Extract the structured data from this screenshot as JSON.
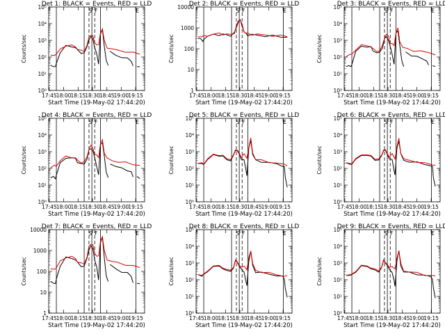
{
  "chart_data": {
    "type": "line",
    "layout": "grid 3x3",
    "common": {
      "xlabel": "Start Time (19-May-02 17:44:20)",
      "ylabel": "Counts/sec",
      "x_ticks": [
        "17:45",
        "18:00",
        "18:15",
        "18:30",
        "18:45",
        "19:00",
        "19:15"
      ],
      "x_tick_minutes": [
        0.667,
        15.667,
        30.667,
        45.667,
        60.667,
        75.667,
        90.667
      ],
      "x_range_minutes": [
        0,
        100
      ],
      "y_scale": "log",
      "colors": {
        "events": "#000000",
        "lld": "#e00000"
      },
      "solid_lines_minutes": [
        8,
        37,
        45,
        54,
        91
      ],
      "dashed_lines_minutes": [
        42,
        48
      ],
      "top_letters": [
        {
          "text": "S",
          "minute": 43.5
        },
        {
          "text": "F",
          "minute": 49.5
        },
        {
          "text": "E",
          "minute": 92.5
        }
      ]
    },
    "panels": [
      {
        "title": "Det 1: BLACK = Events, RED = LLD",
        "ylim": [
          1,
          100000
        ],
        "y_ticks": [
          "10⁰",
          "10¹",
          "10²",
          "10³",
          "10⁴",
          "10⁵"
        ],
        "y_tick_values": [
          1,
          10,
          100,
          1000,
          10000,
          100000
        ],
        "style": "A"
      },
      {
        "title": "Det 2: BLACK = Events, RED = LLD",
        "ylim": [
          1,
          10000
        ],
        "y_ticks": [
          "1",
          "10",
          "100",
          "1000",
          "10000"
        ],
        "y_tick_values": [
          1,
          10,
          100,
          1000,
          10000
        ],
        "style": "B"
      },
      {
        "title": "Det 3: BLACK = Events, RED = LLD",
        "ylim": [
          1,
          100000
        ],
        "y_ticks": [
          "10⁰",
          "10¹",
          "10²",
          "10³",
          "10⁴",
          "10⁵"
        ],
        "y_tick_values": [
          1,
          10,
          100,
          1000,
          10000,
          100000
        ],
        "style": "A"
      },
      {
        "title": "Det 4: BLACK = Events, RED = LLD",
        "ylim": [
          1,
          100000
        ],
        "y_ticks": [
          "10⁰",
          "10¹",
          "10²",
          "10³",
          "10⁴",
          "10⁵"
        ],
        "y_tick_values": [
          1,
          10,
          100,
          1000,
          10000,
          100000
        ],
        "style": "A"
      },
      {
        "title": "Det 5: BLACK = Events, RED = LLD",
        "ylim": [
          1,
          100000
        ],
        "y_ticks": [
          "10⁰",
          "10¹",
          "10²",
          "10³",
          "10⁴",
          "10⁵"
        ],
        "y_tick_values": [
          1,
          10,
          100,
          1000,
          10000,
          100000
        ],
        "style": "C"
      },
      {
        "title": "Det 6: BLACK = Events, RED = LLD",
        "ylim": [
          1,
          100000
        ],
        "y_ticks": [
          "10⁰",
          "10¹",
          "10²",
          "10³",
          "10⁴",
          "10⁵"
        ],
        "y_tick_values": [
          1,
          10,
          100,
          1000,
          10000,
          100000
        ],
        "style": "C"
      },
      {
        "title": "Det 7: BLACK = Events, RED = LLD",
        "ylim": [
          1,
          10000
        ],
        "y_ticks": [
          "1",
          "10",
          "100",
          "1000",
          "10000"
        ],
        "y_tick_values": [
          1,
          10,
          100,
          1000,
          10000
        ],
        "style": "A"
      },
      {
        "title": "Det 8: BLACK = Events, RED = LLD",
        "ylim": [
          1,
          100000
        ],
        "y_ticks": [
          "10⁰",
          "10¹",
          "10²",
          "10³",
          "10⁴",
          "10⁵"
        ],
        "y_tick_values": [
          1,
          10,
          100,
          1000,
          10000,
          100000
        ],
        "style": "C"
      },
      {
        "title": "Det 9: BLACK = Events, RED = LLD",
        "ylim": [
          1,
          100000
        ],
        "y_ticks": [
          "10⁰",
          "10¹",
          "10²",
          "10³",
          "10⁴",
          "10⁵"
        ],
        "y_tick_values": [
          1,
          10,
          100,
          1000,
          10000,
          100000
        ],
        "style": "C"
      }
    ],
    "series_shapes": {
      "A": {
        "red": [
          [
            0,
            null
          ],
          [
            2,
            120
          ],
          [
            6,
            140
          ],
          [
            8,
            140
          ],
          [
            12,
            300
          ],
          [
            18,
            500
          ],
          [
            24,
            480
          ],
          [
            28,
            420
          ],
          [
            30,
            300
          ],
          [
            34,
            230
          ],
          [
            37,
            240
          ],
          [
            40,
            500
          ],
          [
            42,
            1500
          ],
          [
            44,
            2200
          ],
          [
            46,
            1800
          ],
          [
            48,
            700
          ],
          [
            50,
            600
          ],
          [
            52,
            500
          ],
          [
            54,
            3000
          ],
          [
            56,
            5000
          ],
          [
            58,
            900
          ],
          [
            61,
            380
          ],
          [
            66,
            300
          ],
          [
            72,
            250
          ],
          [
            80,
            220
          ],
          [
            88,
            180
          ],
          [
            95,
            150
          ]
        ],
        "black": [
          [
            0,
            null
          ],
          [
            2,
            30
          ],
          [
            5,
            30
          ],
          [
            7,
            25
          ],
          [
            8,
            40
          ],
          [
            12,
            200
          ],
          [
            18,
            450
          ],
          [
            24,
            420
          ],
          [
            28,
            380
          ],
          [
            30,
            250
          ],
          [
            34,
            180
          ],
          [
            37,
            180
          ],
          [
            40,
            400
          ],
          [
            42,
            1200
          ],
          [
            44,
            1600
          ],
          [
            46,
            1200
          ],
          [
            48,
            400
          ],
          [
            50,
            150
          ],
          [
            52,
            40
          ],
          [
            54,
            2500
          ],
          [
            56,
            4000
          ],
          [
            58,
            500
          ],
          [
            60,
            60
          ],
          [
            62,
            30
          ],
          [
            63,
            null
          ],
          [
            64,
            200
          ],
          [
            70,
            130
          ],
          [
            76,
            100
          ],
          [
            82,
            80
          ],
          [
            86,
            60
          ],
          [
            88,
            30
          ],
          [
            89,
            null
          ],
          [
            92,
            30
          ],
          [
            95,
            25
          ]
        ]
      },
      "B": {
        "red": [
          [
            0,
            null
          ],
          [
            2,
            380
          ],
          [
            6,
            400
          ],
          [
            8,
            380
          ],
          [
            12,
            430
          ],
          [
            18,
            500
          ],
          [
            24,
            520
          ],
          [
            28,
            510
          ],
          [
            32,
            480
          ],
          [
            36,
            470
          ],
          [
            40,
            600
          ],
          [
            42,
            1200
          ],
          [
            44,
            2200
          ],
          [
            46,
            2400
          ],
          [
            48,
            1400
          ],
          [
            50,
            700
          ],
          [
            52,
            550
          ],
          [
            54,
            520
          ],
          [
            58,
            500
          ],
          [
            64,
            470
          ],
          [
            72,
            450
          ],
          [
            80,
            430
          ],
          [
            88,
            410
          ],
          [
            95,
            400
          ]
        ],
        "black": [
          [
            0,
            null
          ],
          [
            2,
            330
          ],
          [
            5,
            320
          ],
          [
            7,
            200
          ],
          [
            8,
            300
          ],
          [
            12,
            400
          ],
          [
            18,
            460
          ],
          [
            24,
            480
          ],
          [
            28,
            480
          ],
          [
            32,
            450
          ],
          [
            36,
            440
          ],
          [
            40,
            560
          ],
          [
            42,
            1100
          ],
          [
            44,
            2000
          ],
          [
            46,
            2200
          ],
          [
            48,
            1300
          ],
          [
            50,
            650
          ],
          [
            52,
            500
          ],
          [
            54,
            470
          ],
          [
            58,
            460
          ],
          [
            64,
            440
          ],
          [
            72,
            420
          ],
          [
            80,
            400
          ],
          [
            88,
            380
          ],
          [
            95,
            370
          ]
        ]
      },
      "C": {
        "red": [
          [
            0,
            null
          ],
          [
            2,
            200
          ],
          [
            6,
            200
          ],
          [
            8,
            200
          ],
          [
            12,
            350
          ],
          [
            18,
            700
          ],
          [
            24,
            650
          ],
          [
            28,
            550
          ],
          [
            32,
            400
          ],
          [
            36,
            350
          ],
          [
            39,
            600
          ],
          [
            41,
            1400
          ],
          [
            43,
            1200
          ],
          [
            45,
            800
          ],
          [
            47,
            500
          ],
          [
            50,
            700
          ],
          [
            53,
            400
          ],
          [
            55,
            2000
          ],
          [
            57,
            6000
          ],
          [
            59,
            900
          ],
          [
            62,
            350
          ],
          [
            68,
            300
          ],
          [
            76,
            250
          ],
          [
            84,
            200
          ],
          [
            92,
            170
          ],
          [
            95,
            160
          ]
        ],
        "black": [
          [
            0,
            null
          ],
          [
            2,
            200
          ],
          [
            6,
            180
          ],
          [
            8,
            190
          ],
          [
            12,
            320
          ],
          [
            18,
            650
          ],
          [
            24,
            600
          ],
          [
            28,
            500
          ],
          [
            32,
            350
          ],
          [
            36,
            300
          ],
          [
            39,
            550
          ],
          [
            41,
            1300
          ],
          [
            43,
            1100
          ],
          [
            45,
            700
          ],
          [
            47,
            400
          ],
          [
            50,
            300
          ],
          [
            52,
            80
          ],
          [
            53,
            40
          ],
          [
            55,
            1500
          ],
          [
            57,
            5000
          ],
          [
            59,
            700
          ],
          [
            62,
            300
          ],
          [
            68,
            260
          ],
          [
            76,
            220
          ],
          [
            84,
            180
          ],
          [
            90,
            150
          ],
          [
            92,
            120
          ],
          [
            93,
            30
          ],
          [
            95,
            8
          ]
        ]
      }
    }
  }
}
